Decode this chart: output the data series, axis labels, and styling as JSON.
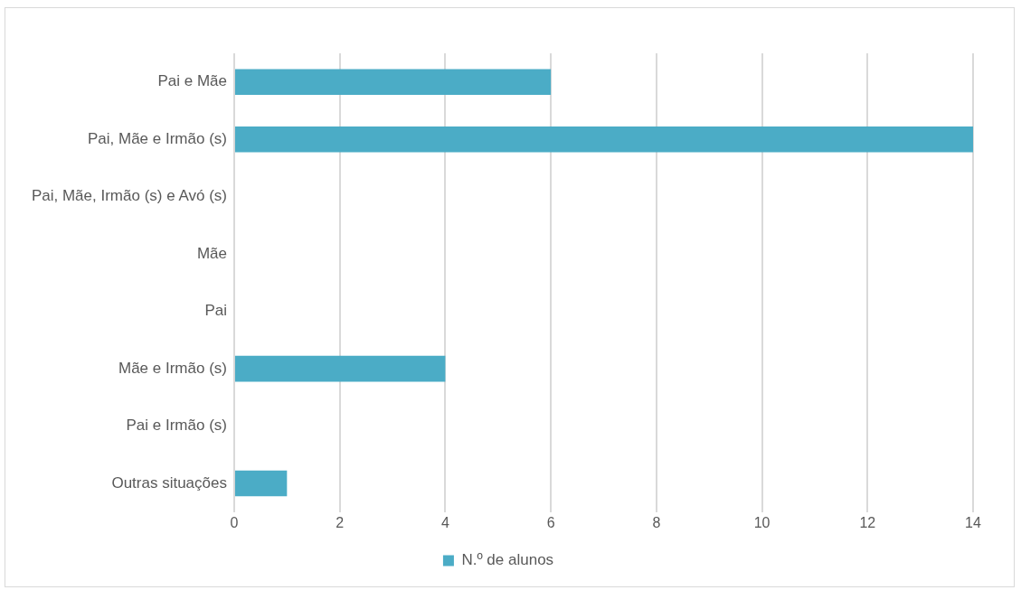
{
  "chart_data": {
    "type": "bar",
    "orientation": "horizontal",
    "categories": [
      "Pai e Mãe",
      "Pai, Mãe e Irmão (s)",
      "Pai, Mãe, Irmão (s) e Avó (s)",
      "Mãe",
      "Pai",
      "Mãe e Irmão (s)",
      "Pai e Irmão (s)",
      "Outras situações"
    ],
    "series": [
      {
        "name": "N.º de alunos",
        "color": "#4bacc6",
        "values": [
          6,
          14,
          0,
          0,
          0,
          4,
          0,
          1
        ]
      }
    ],
    "xlim": [
      0,
      14
    ],
    "xticks": [
      0,
      2,
      4,
      6,
      8,
      10,
      12,
      14
    ],
    "grid": "x",
    "legend": "bottom"
  }
}
